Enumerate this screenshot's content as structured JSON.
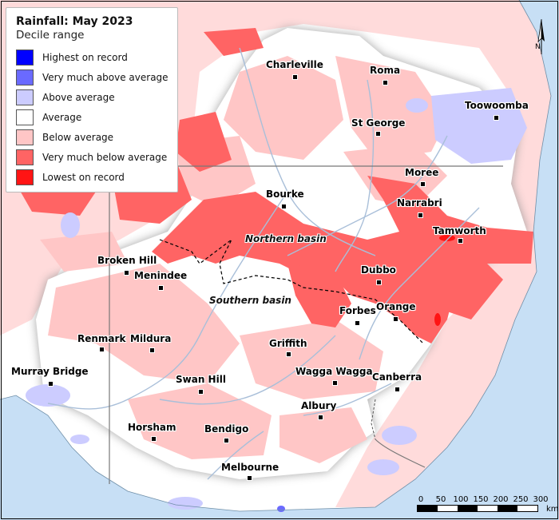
{
  "legend": {
    "title": "Rainfall: May 2023",
    "subtitle": "Decile range",
    "items": [
      {
        "label": "Highest on record",
        "color": "#0000ff"
      },
      {
        "label": "Very much above average",
        "color": "#6a6aff"
      },
      {
        "label": "Above average",
        "color": "#ccccff"
      },
      {
        "label": "Average",
        "color": "#ffffff"
      },
      {
        "label": "Below average",
        "color": "#ffc6c6"
      },
      {
        "label": "Very much below average",
        "color": "#ff6464"
      },
      {
        "label": "Lowest on record",
        "color": "#ff1414"
      }
    ]
  },
  "towns": [
    "Charleville",
    "Roma",
    "Toowoomba",
    "St George",
    "Moree",
    "Bourke",
    "Narrabri",
    "Tamworth",
    "Broken Hill",
    "Menindee",
    "Dubbo",
    "Orange",
    "Forbes",
    "Renmark",
    "Mildura",
    "Griffith",
    "Murray Bridge",
    "Swan Hill",
    "Wagga Wagga",
    "Canberra",
    "Albury",
    "Horsham",
    "Bendigo",
    "Melbourne"
  ],
  "basins": {
    "northern": "Northern basin",
    "southern": "Southern basin"
  },
  "north_arrow": "N",
  "scale": {
    "ticks": [
      "0",
      "50",
      "100",
      "150",
      "200",
      "250",
      "300"
    ],
    "unit": "km"
  },
  "colors": {
    "ocean": "#c7dff5",
    "land": "#ffffff",
    "river": "#a9bfd9",
    "border": "#777777"
  }
}
